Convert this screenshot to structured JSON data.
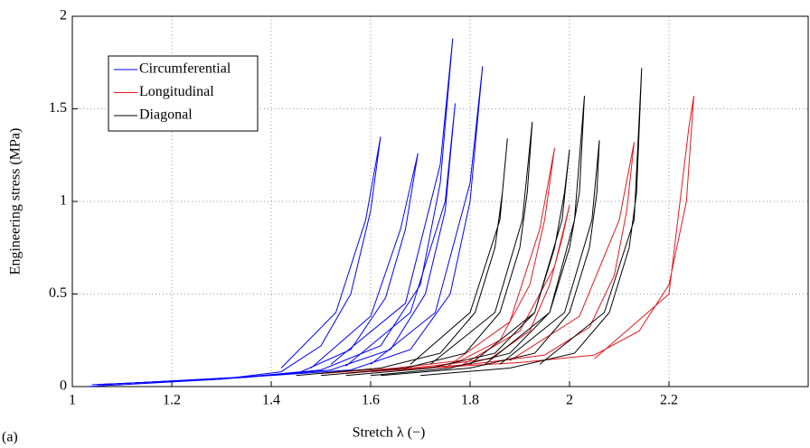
{
  "chart_data": {
    "type": "line",
    "x_label": "Stretch λ (−)",
    "y_label": "Engineering stress (MPa)",
    "panel_label": "(a)",
    "xlim": [
      1,
      2.48
    ],
    "ylim": [
      0,
      2
    ],
    "xticks": [
      1,
      1.2,
      1.4,
      1.6,
      1.8,
      2,
      2.2
    ],
    "yticks": [
      0,
      0.5,
      1,
      1.5,
      2
    ],
    "grid": true,
    "legend": "upper left",
    "series": [
      {
        "name": "Circumferential",
        "color": "#0000ff",
        "curves": [
          {
            "x": [
              1.03,
              1.3,
              1.42,
              1.5,
              1.56,
              1.6,
              1.62,
              1.59,
              1.53,
              1.42
            ],
            "values": [
              0,
              0.04,
              0.08,
              0.22,
              0.5,
              0.95,
              1.35,
              0.9,
              0.4,
              0.1
            ]
          },
          {
            "x": [
              1.04,
              1.3,
              1.46,
              1.56,
              1.63,
              1.67,
              1.695,
              1.66,
              1.6,
              1.48
            ],
            "values": [
              0.01,
              0.04,
              0.08,
              0.2,
              0.48,
              0.85,
              1.26,
              0.85,
              0.38,
              0.1
            ]
          },
          {
            "x": [
              1.05,
              1.35,
              1.5,
              1.62,
              1.7,
              1.74,
              1.765,
              1.74,
              1.67,
              1.52
            ],
            "values": [
              0.01,
              0.05,
              0.09,
              0.22,
              0.55,
              1.1,
              1.88,
              1.2,
              0.45,
              0.12
            ]
          },
          {
            "x": [
              1.05,
              1.35,
              1.52,
              1.64,
              1.71,
              1.75,
              1.77,
              1.75,
              1.68,
              1.55
            ],
            "values": [
              0.01,
              0.05,
              0.09,
              0.2,
              0.5,
              0.95,
              1.53,
              1.0,
              0.4,
              0.11
            ]
          },
          {
            "x": [
              1.06,
              1.4,
              1.56,
              1.68,
              1.76,
              1.8,
              1.825,
              1.8,
              1.73,
              1.6
            ],
            "values": [
              0.01,
              0.06,
              0.09,
              0.2,
              0.5,
              1.0,
              1.73,
              1.1,
              0.4,
              0.12
            ]
          }
        ]
      },
      {
        "name": "Longitudinal",
        "color": "#e8161d",
        "curves": [
          {
            "x": [
              1.5,
              1.65,
              1.78,
              1.86,
              1.92,
              1.95,
              1.97,
              1.94,
              1.88,
              1.75
            ],
            "values": [
              0.07,
              0.1,
              0.14,
              0.25,
              0.55,
              0.9,
              1.29,
              0.85,
              0.35,
              0.1
            ]
          },
          {
            "x": [
              1.55,
              1.72,
              1.84,
              1.92,
              1.96,
              1.985,
              2.0,
              1.97,
              1.9,
              1.78
            ],
            "values": [
              0.07,
              0.11,
              0.15,
              0.3,
              0.55,
              0.8,
              0.98,
              0.65,
              0.3,
              0.11
            ]
          },
          {
            "x": [
              1.6,
              1.8,
              1.95,
              2.04,
              2.09,
              2.115,
              2.13,
              2.1,
              2.02,
              1.88
            ],
            "values": [
              0.08,
              0.12,
              0.17,
              0.32,
              0.6,
              0.95,
              1.32,
              0.9,
              0.38,
              0.14
            ]
          },
          {
            "x": [
              1.65,
              1.9,
              2.05,
              2.14,
              2.2,
              2.235,
              2.25,
              2.24,
              2.2,
              2.05
            ],
            "values": [
              0.09,
              0.13,
              0.17,
              0.3,
              0.55,
              1.0,
              1.57,
              1.4,
              0.5,
              0.15
            ]
          }
        ]
      },
      {
        "name": "Diagonal",
        "color": "#000000",
        "curves": [
          {
            "x": [
              1.45,
              1.62,
              1.74,
              1.81,
              1.85,
              1.865,
              1.875,
              1.86,
              1.8,
              1.68
            ],
            "values": [
              0.06,
              0.1,
              0.18,
              0.4,
              0.75,
              1.05,
              1.34,
              0.9,
              0.4,
              0.12
            ]
          },
          {
            "x": [
              1.5,
              1.67,
              1.79,
              1.86,
              1.9,
              1.915,
              1.925,
              1.905,
              1.85,
              1.72
            ],
            "values": [
              0.06,
              0.1,
              0.18,
              0.4,
              0.75,
              1.05,
              1.43,
              0.9,
              0.4,
              0.12
            ]
          },
          {
            "x": [
              1.55,
              1.72,
              1.85,
              1.93,
              1.97,
              1.99,
              2.0,
              1.985,
              1.93,
              1.8
            ],
            "values": [
              0.06,
              0.1,
              0.18,
              0.4,
              0.75,
              1.05,
              1.28,
              0.9,
              0.4,
              0.12
            ]
          },
          {
            "x": [
              1.6,
              1.76,
              1.88,
              1.96,
              2.0,
              2.02,
              2.03,
              2.01,
              1.96,
              1.83
            ],
            "values": [
              0.06,
              0.1,
              0.18,
              0.4,
              0.75,
              1.05,
              1.57,
              0.9,
              0.4,
              0.12
            ]
          },
          {
            "x": [
              1.62,
              1.8,
              1.93,
              2.0,
              2.04,
              2.055,
              2.06,
              2.045,
              1.99,
              1.86
            ],
            "values": [
              0.06,
              0.1,
              0.18,
              0.4,
              0.75,
              1.05,
              1.33,
              0.9,
              0.4,
              0.12
            ]
          },
          {
            "x": [
              1.7,
              1.88,
              2.01,
              2.08,
              2.12,
              2.135,
              2.145,
              2.13,
              2.07,
              1.94
            ],
            "values": [
              0.06,
              0.1,
              0.18,
              0.4,
              0.75,
              1.05,
              1.72,
              0.9,
              0.4,
              0.12
            ]
          }
        ]
      }
    ]
  }
}
